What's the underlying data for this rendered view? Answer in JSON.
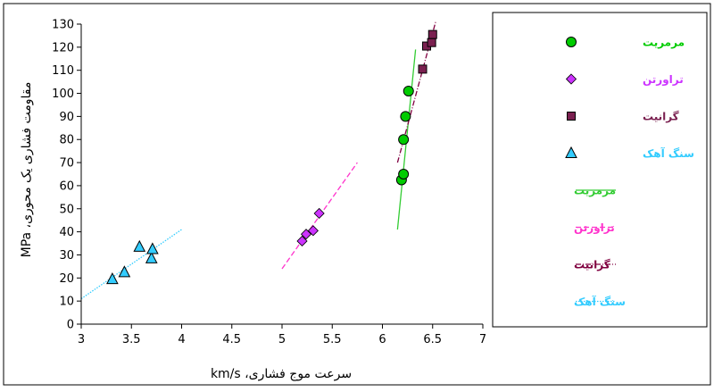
{
  "chart_data": {
    "type": "scatter",
    "title": "",
    "xlabel": "سرعت موج فشاری، km/s",
    "ylabel": "مقاومت فشاری یک محوری، MPa",
    "xlim": [
      3,
      7
    ],
    "ylim": [
      0,
      130
    ],
    "x_ticks": [
      "3",
      "3.5",
      "4",
      "4.5",
      "5",
      "5.5",
      "6",
      "6.5",
      "7"
    ],
    "y_ticks": [
      "0",
      "10",
      "20",
      "30",
      "40",
      "50",
      "60",
      "70",
      "80",
      "90",
      "100",
      "110",
      "120",
      "130"
    ],
    "grid": false,
    "legend_position": "right",
    "series": [
      {
        "name": "مرمریت",
        "marker": "circle",
        "color": "#00cc00",
        "x": [
          6.19,
          6.21,
          6.21,
          6.23,
          6.26
        ],
        "y": [
          62.5,
          65,
          80,
          90,
          101
        ]
      },
      {
        "name": "تراورتن",
        "marker": "diamond",
        "color": "#cc33ff",
        "x": [
          5.2,
          5.24,
          5.31,
          5.37
        ],
        "y": [
          36,
          39,
          40.5,
          48
        ]
      },
      {
        "name": "گرانیت",
        "marker": "square",
        "color": "#7a2050",
        "x": [
          6.4,
          6.44,
          6.49,
          6.5
        ],
        "y": [
          110.5,
          120.5,
          122,
          125.5
        ]
      },
      {
        "name": "سنگ آهک",
        "marker": "triangle",
        "color": "#33ccff",
        "x": [
          3.31,
          3.43,
          3.58,
          3.7,
          3.71
        ],
        "y": [
          19.5,
          22.5,
          33.5,
          28.5,
          32.5
        ]
      }
    ],
    "trendlines": [
      {
        "name": "مرمریت",
        "color": "#33cc33",
        "dash": "solid",
        "x": [
          6.15,
          6.33
        ],
        "y": [
          41,
          119
        ]
      },
      {
        "name": "تراورتن",
        "color": "#ff33cc",
        "dash": "dash",
        "x": [
          5.0,
          5.75
        ],
        "y": [
          24,
          70
        ]
      },
      {
        "name": "گرانیت",
        "color": "#800040",
        "dash": "dashdot",
        "x": [
          6.15,
          6.53
        ],
        "y": [
          70,
          131
        ]
      },
      {
        "name": "سنگ آهک",
        "color": "#33ccff",
        "dash": "dot",
        "x": [
          3.0,
          4.0
        ],
        "y": [
          11,
          41
        ]
      }
    ]
  }
}
